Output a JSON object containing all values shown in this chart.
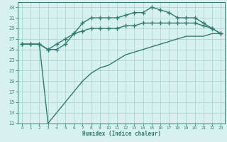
{
  "xlabel": "Humidex (Indice chaleur)",
  "x": [
    0,
    1,
    2,
    3,
    4,
    5,
    6,
    7,
    8,
    9,
    10,
    11,
    12,
    13,
    14,
    15,
    16,
    17,
    18,
    19,
    20,
    21,
    22,
    23
  ],
  "max_y": [
    26,
    26,
    26,
    25,
    25,
    26,
    28,
    30,
    31,
    31,
    31,
    31,
    31.5,
    32,
    32,
    33,
    32.5,
    32,
    31,
    31,
    31,
    30,
    29,
    28
  ],
  "mean_y": [
    26,
    26,
    26,
    25,
    26,
    27,
    28,
    28.5,
    29,
    29,
    29,
    29,
    29.5,
    29.5,
    30,
    30,
    30,
    30,
    30,
    30,
    30,
    29.5,
    29,
    28
  ],
  "min_y": [
    26,
    26,
    26,
    11,
    13,
    15,
    17,
    19,
    20.5,
    21.5,
    22,
    23,
    24,
    24.5,
    25,
    25.5,
    26,
    26.5,
    27,
    27.5,
    27.5,
    27.5,
    28,
    28
  ],
  "line_color": "#2e7d6e",
  "bg_color": "#d7f0f0",
  "grid_color": "#aacece",
  "ylim": [
    11,
    34
  ],
  "yticks": [
    11,
    13,
    15,
    17,
    19,
    21,
    23,
    25,
    27,
    29,
    31,
    33
  ],
  "xlim": [
    -0.5,
    23.5
  ],
  "xticks": [
    0,
    1,
    2,
    3,
    4,
    5,
    6,
    7,
    8,
    9,
    10,
    11,
    12,
    13,
    14,
    15,
    16,
    17,
    18,
    19,
    20,
    21,
    22,
    23
  ],
  "marker": "+",
  "markersize": 4,
  "linewidth": 1.0
}
